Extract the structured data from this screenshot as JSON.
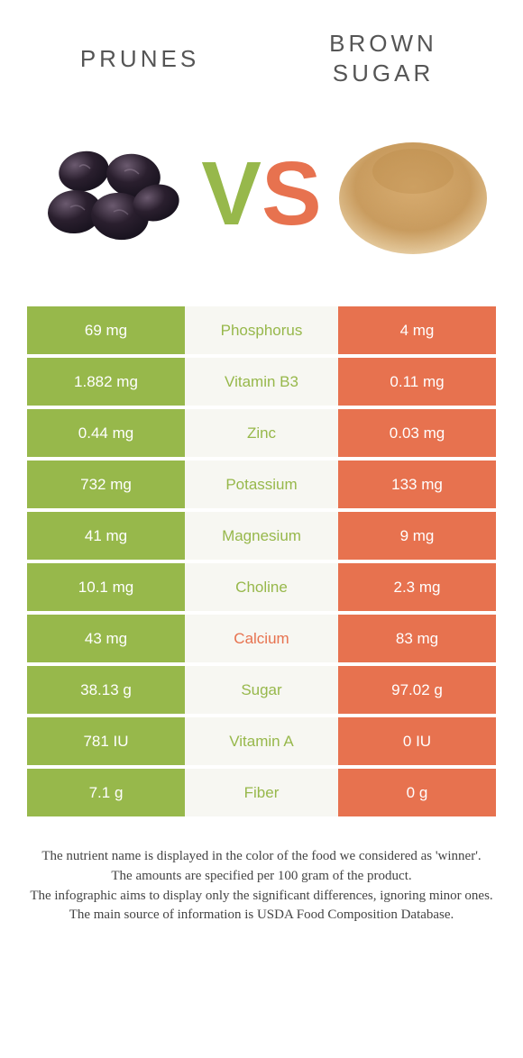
{
  "colors": {
    "left_bg": "#97b84b",
    "right_bg": "#e7724f",
    "left_text": "#97b84b",
    "right_text": "#e7724f",
    "mid_bg": "#f7f7f2",
    "white": "#ffffff",
    "prune_dark": "#2a1f2e",
    "prune_hi": "#5a4a5e",
    "sugar_main": "#c99a5b",
    "sugar_edge": "#e2c193"
  },
  "header": {
    "left": "PRUNES",
    "right_l1": "BROWN",
    "right_l2": "SUGAR",
    "v": "V",
    "s": "S"
  },
  "rows": [
    {
      "left": "69 mg",
      "label": "Phosphorus",
      "right": "4 mg",
      "winner": "left"
    },
    {
      "left": "1.882 mg",
      "label": "Vitamin B3",
      "right": "0.11 mg",
      "winner": "left"
    },
    {
      "left": "0.44 mg",
      "label": "Zinc",
      "right": "0.03 mg",
      "winner": "left"
    },
    {
      "left": "732 mg",
      "label": "Potassium",
      "right": "133 mg",
      "winner": "left"
    },
    {
      "left": "41 mg",
      "label": "Magnesium",
      "right": "9 mg",
      "winner": "left"
    },
    {
      "left": "10.1 mg",
      "label": "Choline",
      "right": "2.3 mg",
      "winner": "left"
    },
    {
      "left": "43 mg",
      "label": "Calcium",
      "right": "83 mg",
      "winner": "right"
    },
    {
      "left": "38.13 g",
      "label": "Sugar",
      "right": "97.02 g",
      "winner": "left"
    },
    {
      "left": "781 IU",
      "label": "Vitamin A",
      "right": "0 IU",
      "winner": "left"
    },
    {
      "left": "7.1 g",
      "label": "Fiber",
      "right": "0 g",
      "winner": "left"
    }
  ],
  "footer": {
    "l1": "The nutrient name is displayed in the color of the food we considered as 'winner'.",
    "l2": "The amounts are specified per 100 gram of the product.",
    "l3": "The infographic aims to display only the significant differences, ignoring minor ones.",
    "l4": "The main source of information is USDA Food Composition Database."
  }
}
